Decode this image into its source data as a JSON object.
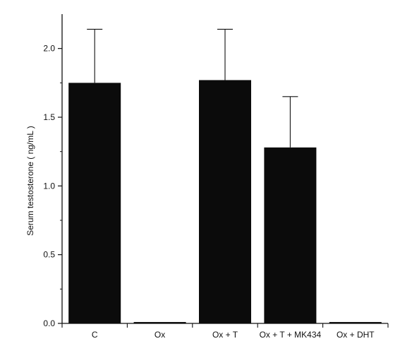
{
  "chart_data": {
    "type": "bar",
    "title": "",
    "xlabel": "",
    "ylabel": "Serum testosterone ( ng/mL )",
    "categories": [
      "C",
      "Ox",
      "Ox + T",
      "Ox + T + MK434",
      "Ox + DHT"
    ],
    "values": [
      1.75,
      0.01,
      1.77,
      1.28,
      0.01
    ],
    "error_upper": [
      0.39,
      0.0,
      0.37,
      0.37,
      0.0
    ],
    "ylim": [
      0,
      2.25
    ],
    "yticks": [
      "0.0",
      "0.5",
      "1.0",
      "1.5",
      "2.0"
    ],
    "grid": false,
    "legend": "none",
    "colors": {
      "bar": "#0b0b0b",
      "axis": "#111111"
    }
  }
}
